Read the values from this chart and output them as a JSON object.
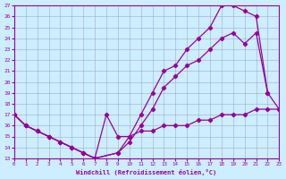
{
  "xlabel": "Windchill (Refroidissement éolien,°C)",
  "bg_color": "#cceeff",
  "line_color": "#990099",
  "xlim": [
    0,
    23
  ],
  "ylim": [
    13,
    27
  ],
  "yticks": [
    13,
    14,
    15,
    16,
    17,
    18,
    19,
    20,
    21,
    22,
    23,
    24,
    25,
    26,
    27
  ],
  "xticks": [
    0,
    1,
    2,
    3,
    4,
    5,
    6,
    7,
    8,
    9,
    10,
    11,
    12,
    13,
    14,
    15,
    16,
    17,
    18,
    19,
    20,
    21,
    22,
    23
  ],
  "line_top": {
    "x": [
      0,
      1,
      2,
      3,
      4,
      5,
      6,
      7,
      9,
      10,
      11,
      12,
      13,
      14,
      15,
      16,
      17,
      18,
      19,
      20,
      21,
      22
    ],
    "y": [
      17,
      16,
      15.5,
      15,
      14.5,
      14,
      13.5,
      13,
      13.5,
      15,
      17,
      19,
      21,
      21.5,
      23,
      24,
      25,
      27,
      27,
      26.5,
      26,
      19
    ]
  },
  "line_mid": {
    "x": [
      0,
      1,
      2,
      3,
      4,
      5,
      6,
      7,
      9,
      10,
      11,
      12,
      13,
      14,
      15,
      16,
      17,
      18,
      19,
      20,
      21,
      22,
      23
    ],
    "y": [
      17,
      16,
      15.5,
      15,
      14.5,
      14,
      13.5,
      13,
      13.5,
      14.5,
      16,
      17.5,
      19.5,
      20.5,
      21.5,
      22,
      23,
      24,
      24.5,
      23.5,
      24.5,
      19,
      17.5
    ]
  },
  "line_bot": {
    "x": [
      0,
      1,
      2,
      3,
      4,
      5,
      6,
      7,
      8,
      9,
      10,
      11,
      12,
      13,
      14,
      15,
      16,
      17,
      18,
      19,
      20,
      21,
      22,
      23
    ],
    "y": [
      17,
      16,
      15.5,
      15,
      14.5,
      14,
      13.5,
      13,
      17,
      15,
      15,
      15.5,
      15.5,
      16,
      16,
      16,
      16.5,
      16.5,
      17,
      17,
      17,
      17.5,
      17.5,
      17.5
    ]
  }
}
